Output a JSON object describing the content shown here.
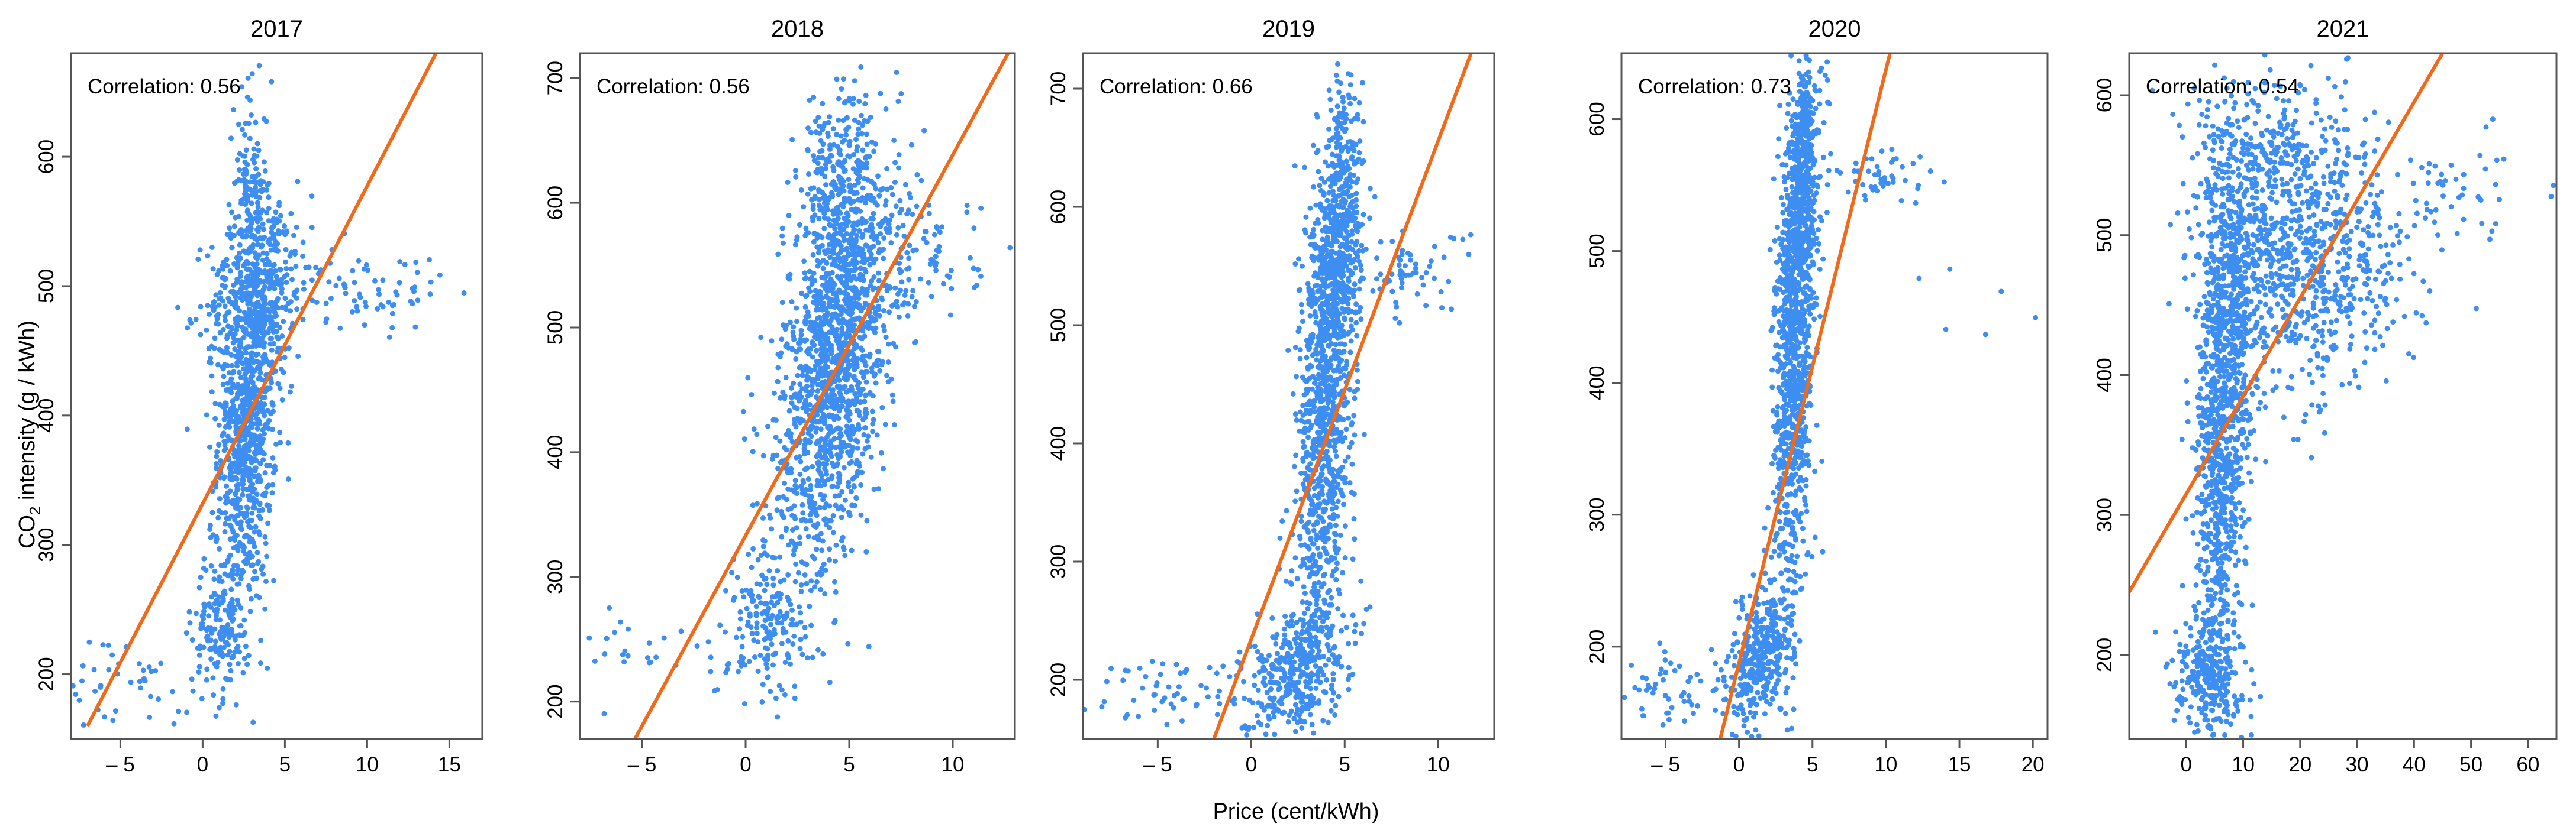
{
  "figure": {
    "ylabel_main": "CO",
    "ylabel_sub": "2",
    "ylabel_rest": " intensity (g / kWh)",
    "xlabel": "Price (cent/kWh)"
  },
  "colors": {
    "points": "#3d8ef0",
    "fit": "#f06a1a",
    "frame": "#555555"
  },
  "chart_data": [
    {
      "type": "scatter",
      "title": "2017",
      "annotation": "Correlation: 0.56",
      "xlim": [
        -8,
        17
      ],
      "ylim": [
        150,
        680
      ],
      "xticks": [
        -5,
        0,
        5,
        10,
        15
      ],
      "xtick_labels": [
        "– 5",
        "0",
        "5",
        "10",
        "15"
      ],
      "yticks": [
        200,
        300,
        400,
        500,
        600
      ],
      "ytick_labels": [
        "200",
        "300",
        "400",
        "500",
        "600"
      ],
      "fit_line": [
        [
          -7,
          160
        ],
        [
          15,
          700
        ]
      ],
      "clusters": [
        {
          "cx": 2.7,
          "cy": 400,
          "sx": 0.9,
          "sy": 70,
          "slope": 12,
          "n": 900
        },
        {
          "cx": 3.5,
          "cy": 500,
          "sx": 1.6,
          "sy": 35,
          "slope": 5,
          "n": 350
        },
        {
          "cx": 2.9,
          "cy": 580,
          "sx": 0.5,
          "sy": 35,
          "slope": 0,
          "n": 120
        },
        {
          "cx": 1.2,
          "cy": 240,
          "sx": 0.9,
          "sy": 30,
          "slope": 5,
          "n": 200
        },
        {
          "cx": -5,
          "cy": 195,
          "sx": 2.2,
          "sy": 20,
          "slope": 0,
          "n": 45
        },
        {
          "cx": 10,
          "cy": 495,
          "sx": 2.3,
          "sy": 14,
          "slope": 0,
          "n": 70
        }
      ]
    },
    {
      "type": "scatter",
      "title": "2018",
      "annotation": "Correlation: 0.56",
      "xlim": [
        -8,
        13
      ],
      "ylim": [
        170,
        720
      ],
      "xticks": [
        -5,
        0,
        5,
        10
      ],
      "xtick_labels": [
        "– 5",
        "0",
        "5",
        "10"
      ],
      "yticks": [
        200,
        300,
        400,
        500,
        600,
        700
      ],
      "ytick_labels": [
        "200",
        "300",
        "400",
        "500",
        "600",
        "700"
      ],
      "fit_line": [
        [
          -6,
          150
        ],
        [
          13,
          730
        ]
      ],
      "clusters": [
        {
          "cx": 4.6,
          "cy": 510,
          "sx": 1.4,
          "sy": 65,
          "slope": 18,
          "n": 1100
        },
        {
          "cx": 3.8,
          "cy": 400,
          "sx": 1.3,
          "sy": 55,
          "slope": 15,
          "n": 450
        },
        {
          "cx": 4.3,
          "cy": 620,
          "sx": 0.9,
          "sy": 40,
          "slope": 8,
          "n": 200
        },
        {
          "cx": 1.2,
          "cy": 265,
          "sx": 1.0,
          "sy": 35,
          "slope": 5,
          "n": 180
        },
        {
          "cx": -4,
          "cy": 240,
          "sx": 2.0,
          "sy": 18,
          "slope": 0,
          "n": 35
        },
        {
          "cx": 8.5,
          "cy": 555,
          "sx": 1.4,
          "sy": 25,
          "slope": 0,
          "n": 80
        }
      ]
    },
    {
      "type": "scatter",
      "title": "2019",
      "annotation": "Correlation: 0.66",
      "xlim": [
        -9,
        13
      ],
      "ylim": [
        150,
        730
      ],
      "xticks": [
        -5,
        0,
        5,
        10
      ],
      "xtick_labels": [
        "– 5",
        "0",
        "5",
        "10"
      ],
      "yticks": [
        200,
        300,
        400,
        500,
        600,
        700
      ],
      "ytick_labels": [
        "200",
        "300",
        "400",
        "500",
        "600",
        "700"
      ],
      "fit_line": [
        [
          -2,
          150
        ],
        [
          12,
          740
        ]
      ],
      "clusters": [
        {
          "cx": 4.0,
          "cy": 430,
          "sx": 0.8,
          "sy": 100,
          "slope": 55,
          "n": 1000
        },
        {
          "cx": 4.6,
          "cy": 560,
          "sx": 0.7,
          "sy": 45,
          "slope": 10,
          "n": 350
        },
        {
          "cx": 5.0,
          "cy": 650,
          "sx": 0.35,
          "sy": 30,
          "slope": 0,
          "n": 90
        },
        {
          "cx": 2.2,
          "cy": 210,
          "sx": 1.4,
          "sy": 25,
          "slope": 8,
          "n": 350
        },
        {
          "cx": -4.5,
          "cy": 190,
          "sx": 2.2,
          "sy": 15,
          "slope": 0,
          "n": 55
        },
        {
          "cx": 8.5,
          "cy": 545,
          "sx": 1.5,
          "sy": 18,
          "slope": 0,
          "n": 60
        }
      ]
    },
    {
      "type": "scatter",
      "title": "2020",
      "annotation": "Correlation: 0.73",
      "xlim": [
        -8,
        21
      ],
      "ylim": [
        130,
        650
      ],
      "xticks": [
        -5,
        0,
        5,
        10,
        15,
        20
      ],
      "xtick_labels": [
        "– 5",
        "0",
        "5",
        "10",
        "15",
        "20"
      ],
      "yticks": [
        200,
        300,
        400,
        500,
        600
      ],
      "ytick_labels": [
        "200",
        "300",
        "400",
        "500",
        "600"
      ],
      "fit_line": [
        [
          -1.5,
          120
        ],
        [
          10.5,
          660
        ]
      ],
      "clusters": [
        {
          "cx": 3.8,
          "cy": 430,
          "sx": 0.7,
          "sy": 95,
          "slope": 60,
          "n": 1000
        },
        {
          "cx": 4.3,
          "cy": 540,
          "sx": 0.6,
          "sy": 40,
          "slope": 15,
          "n": 300
        },
        {
          "cx": 4.5,
          "cy": 610,
          "sx": 0.35,
          "sy": 20,
          "slope": 0,
          "n": 80
        },
        {
          "cx": 1.5,
          "cy": 195,
          "sx": 1.1,
          "sy": 25,
          "slope": 10,
          "n": 350
        },
        {
          "cx": -4,
          "cy": 170,
          "sx": 2.2,
          "sy": 15,
          "slope": 0,
          "n": 55
        },
        {
          "cx": 10,
          "cy": 555,
          "sx": 1.5,
          "sy": 12,
          "slope": 0,
          "n": 45
        },
        {
          "cx": 15,
          "cy": 455,
          "sx": 3.0,
          "sy": 15,
          "slope": 0,
          "n": 6
        }
      ]
    },
    {
      "type": "scatter",
      "title": "2021",
      "annotation": "Correlation: 0.54",
      "xlim": [
        -10,
        65
      ],
      "ylim": [
        140,
        630
      ],
      "xticks": [
        0,
        10,
        20,
        30,
        40,
        50,
        60
      ],
      "xtick_labels": [
        "0",
        "10",
        "20",
        "30",
        "40",
        "50",
        "60"
      ],
      "yticks": [
        200,
        300,
        400,
        500,
        600
      ],
      "ytick_labels": [
        "200",
        "300",
        "400",
        "500",
        "600"
      ],
      "fit_line": [
        [
          -10,
          245
        ],
        [
          45,
          630
        ]
      ],
      "clusters": [
        {
          "cx": 6,
          "cy": 330,
          "sx": 2.2,
          "sy": 75,
          "slope": 6,
          "n": 700
        },
        {
          "cx": 8,
          "cy": 460,
          "sx": 3.0,
          "sy": 55,
          "slope": 0,
          "n": 500
        },
        {
          "cx": 22,
          "cy": 480,
          "sx": 8.0,
          "sy": 45,
          "slope": 0,
          "n": 700
        },
        {
          "cx": 15,
          "cy": 560,
          "sx": 7.0,
          "sy": 30,
          "slope": 0,
          "n": 250
        },
        {
          "cx": 4,
          "cy": 185,
          "sx": 3.0,
          "sy": 22,
          "slope": 0,
          "n": 250
        },
        {
          "cx": 48,
          "cy": 535,
          "sx": 7.0,
          "sy": 22,
          "slope": 0,
          "n": 50
        }
      ]
    }
  ]
}
